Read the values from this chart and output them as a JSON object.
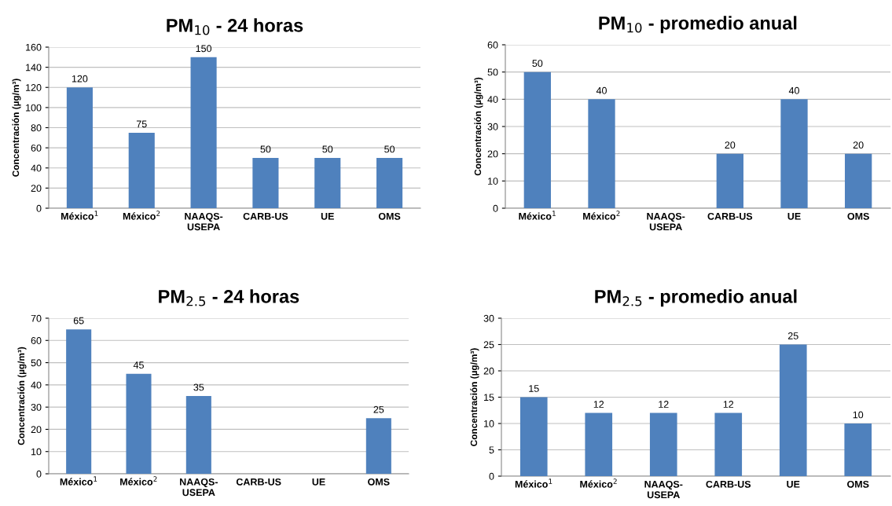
{
  "chart_data": [
    {
      "type": "bar",
      "title": "PM$_{10}$ - 24 horas",
      "ylabel": "Concentración (µg/m³)",
      "categories": [
        "México$^{1}$",
        "México$^{2}$",
        "NAAQS-\nUSEPA",
        "CARB-US",
        "UE",
        "OMS"
      ],
      "values": [
        120,
        75,
        150,
        50,
        50,
        50
      ],
      "color": "#4f81bd",
      "ylim": [
        0,
        160
      ],
      "yticks": [
        0,
        20,
        40,
        60,
        80,
        100,
        120,
        140,
        160
      ],
      "grid": "y",
      "data_labels": true
    },
    {
      "type": "bar",
      "title": "PM$_{10}$ - promedio anual",
      "ylabel": "Concentración (µg/m³)",
      "categories": [
        "México$^{1}$",
        "México$^{2}$",
        "NAAQS-\nUSEPA",
        "CARB-US",
        "UE",
        "OMS"
      ],
      "values": [
        50,
        40,
        null,
        20,
        40,
        20
      ],
      "color": "#4f81bd",
      "ylim": [
        0,
        60
      ],
      "yticks": [
        0,
        10,
        20,
        30,
        40,
        50,
        60
      ],
      "grid": "y",
      "data_labels": true
    },
    {
      "type": "bar",
      "title": "PM$_{2.5}$ - 24 horas",
      "ylabel": "Concentración (µg/m³)",
      "categories": [
        "México$^{1}$",
        "México$^{2}$",
        "NAAQS-\nUSEPA",
        "CARB-US",
        "UE",
        "OMS"
      ],
      "values": [
        65,
        45,
        35,
        null,
        null,
        25
      ],
      "color": "#4f81bd",
      "ylim": [
        0,
        70
      ],
      "yticks": [
        0,
        10,
        20,
        30,
        40,
        50,
        60,
        70
      ],
      "grid": "y",
      "data_labels": true
    },
    {
      "type": "bar",
      "title": "PM$_{2.5}$ - promedio anual",
      "ylabel": "Concentración (µg/m³)",
      "categories": [
        "México$^{1}$",
        "México$^{2}$",
        "NAAQS-\nUSEPA",
        "CARB-US",
        "UE",
        "OMS"
      ],
      "values": [
        15,
        12,
        12,
        12,
        25,
        10
      ],
      "color": "#4f81bd",
      "ylim": [
        0,
        30
      ],
      "yticks": [
        0,
        5,
        10,
        15,
        20,
        25,
        30
      ],
      "grid": "y",
      "data_labels": true
    }
  ]
}
